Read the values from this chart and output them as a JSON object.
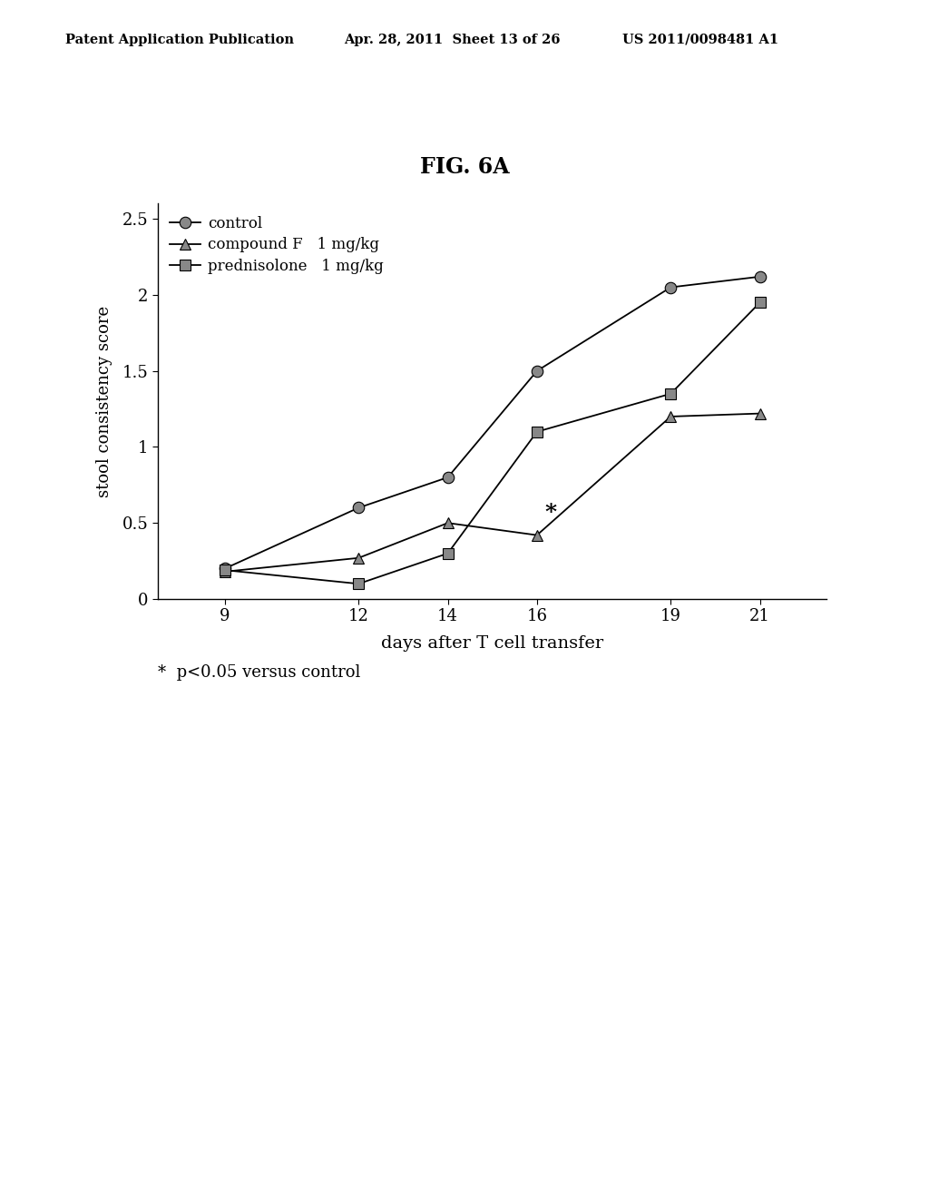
{
  "title": "FIG. 6A",
  "xlabel": "days after T cell transfer",
  "ylabel": "stool consistency score",
  "header_left": "Patent Application Publication",
  "header_center": "Apr. 28, 2011  Sheet 13 of 26",
  "header_right": "US 2011/0098481 A1",
  "footnote": "*  p<0.05 versus control",
  "x_values": [
    9,
    12,
    14,
    16,
    19,
    21
  ],
  "control_y": [
    0.2,
    0.6,
    0.8,
    1.5,
    2.05,
    2.12
  ],
  "compound_f_y": [
    0.18,
    0.27,
    0.5,
    0.42,
    1.2,
    1.22
  ],
  "prednisolone_y": [
    0.19,
    0.1,
    0.3,
    1.1,
    1.35,
    1.95
  ],
  "ylim": [
    0,
    2.6
  ],
  "yticks": [
    0,
    0.5,
    1.0,
    1.5,
    2.0,
    2.5
  ],
  "xticks": [
    9,
    12,
    14,
    16,
    19,
    21
  ],
  "star_x": 16.3,
  "star_y": 0.57,
  "legend_labels": [
    "control",
    "compound F   1 mg/kg",
    "prednisolone   1 mg/kg"
  ],
  "background_color": "#ffffff"
}
